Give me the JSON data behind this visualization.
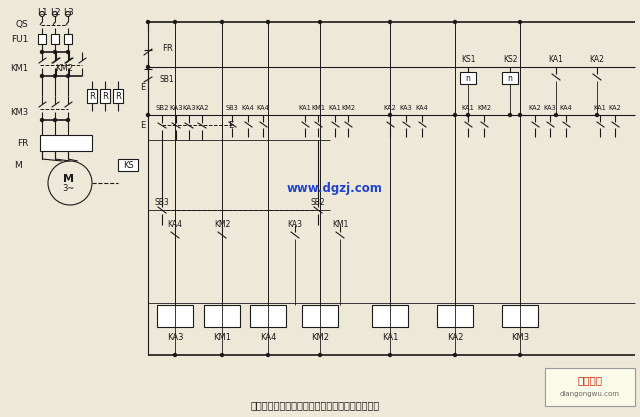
{
  "bg_color": "#ede8d8",
  "line_color": "#1a1a1a",
  "text_color": "#1a1a1a",
  "watermark_color": "#2244cc",
  "watermark_text": "www.dgzj.com",
  "title": "具有反接制动电阔的可逆运行反接制动的控制线路",
  "brand_text": "电工之屋",
  "brand_sub": "diangongwu.com",
  "figsize": [
    6.4,
    4.17
  ],
  "dpi": 100
}
